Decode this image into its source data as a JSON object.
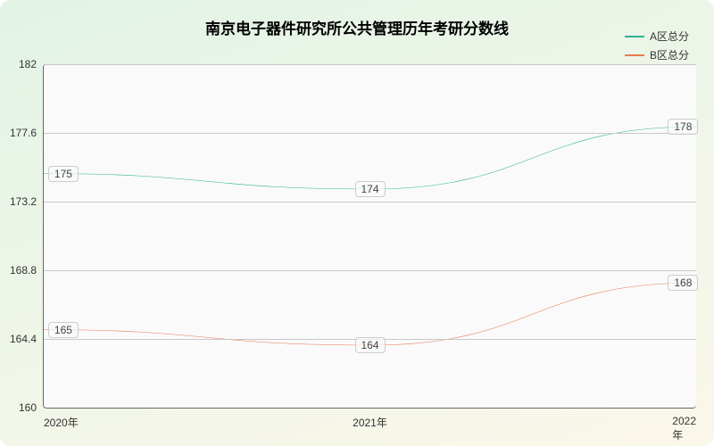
{
  "chart": {
    "type": "line",
    "title": "南京电子器件研究所公共管理历年考研分数线",
    "title_fontsize": 17,
    "background_gradient": {
      "from": "#e2f4e6",
      "to": "#fbf7ea"
    },
    "plot_background": "#fafafa",
    "grid_color": "#c8c8c8",
    "axis_color": "#666666",
    "x_categories": [
      "2020年",
      "2021年",
      "2022年"
    ],
    "y_axis": {
      "min": 160,
      "max": 182,
      "ticks": [
        160,
        164.4,
        168.8,
        173.2,
        177.6,
        182
      ],
      "label_fontsize": 12
    },
    "series": [
      {
        "name": "A区总分",
        "color": "#2fb396",
        "values": [
          175,
          174,
          178
        ],
        "line_width": 2
      },
      {
        "name": "B区总分",
        "color": "#e77a4f",
        "values": [
          165,
          164,
          168
        ],
        "line_width": 2
      }
    ],
    "legend": {
      "position": "top-right",
      "fontsize": 12
    }
  }
}
